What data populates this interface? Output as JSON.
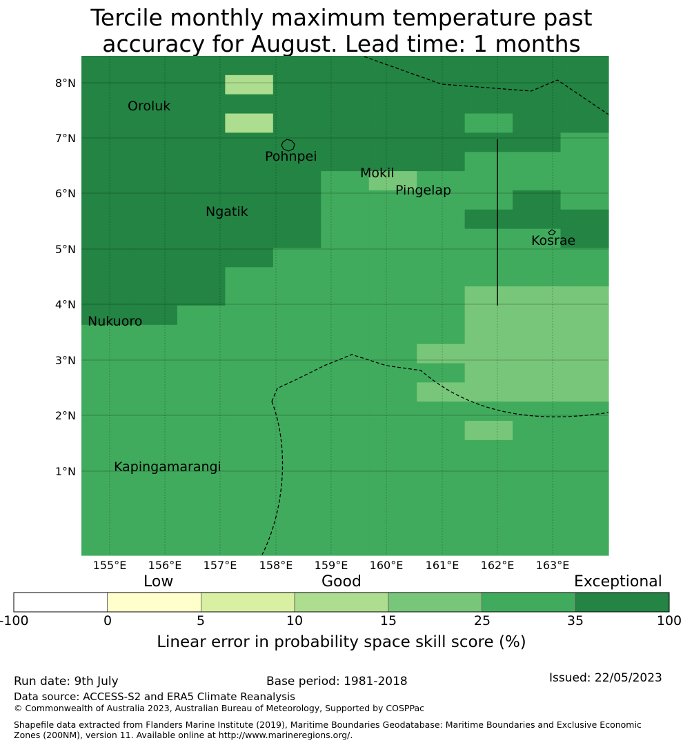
{
  "title": {
    "line1": "Tercile monthly maximum temperature past",
    "line2": "accuracy for August. Lead time: 1 months"
  },
  "map": {
    "lat_labels": [
      "8°N",
      "7°N",
      "6°N",
      "5°N",
      "4°N",
      "3°N",
      "2°N",
      "1°N"
    ],
    "lon_labels": [
      "155°E",
      "156°E",
      "157°E",
      "158°E",
      "159°E",
      "160°E",
      "161°E",
      "162°E",
      "163°E"
    ],
    "places": [
      {
        "name": "Oroluk"
      },
      {
        "name": "Pohnpei"
      },
      {
        "name": "Mokil"
      },
      {
        "name": "Pingelap"
      },
      {
        "name": "Ngatik"
      },
      {
        "name": "Kosrae"
      },
      {
        "name": "Nukuoro"
      },
      {
        "name": "Kapingamarangi"
      }
    ],
    "grid_category_rows_north_to_south": [
      "66666666666",
      "66636666666",
      "66666666666",
      "66636666566",
      "66666666665",
      "66666666555",
      "66666545555",
      "66666555565",
      "66666555666",
      "66666555556",
      "66665555555",
      "66655555555",
      "66655555444",
      "66555555444",
      "55555555444",
      "55555554444",
      "55555555444",
      "55555554444",
      "55555555555",
      "55555555455",
      "55555555555",
      "55555555555",
      "55555555555",
      "55555555555",
      "55555555555",
      "55555555555"
    ]
  },
  "legend": {
    "category_labels": [
      "Low",
      "Good",
      "Exceptional"
    ],
    "ticks": [
      "-100",
      "0",
      "5",
      "10",
      "15",
      "25",
      "35",
      "100"
    ],
    "colors": [
      "#ffffff",
      "#ffffcc",
      "#d9f0a3",
      "#addd8e",
      "#78c679",
      "#41ab5d",
      "#238443"
    ],
    "label": "Linear error in probability space skill score (%)"
  },
  "footer": {
    "run_date": "Run date: 9th July",
    "base_period": "Base period: 1981-2018",
    "issued": "Issued: 22/05/2023",
    "data_source": "Data source: ACCESS-S2 and ERA5 Climate Reanalysis",
    "copyright": "© Commonwealth of Australia 2023, Australian Bureau of Meteorology, Supported by COSPPac",
    "shapefile": "Shapefile data extracted from Flanders Marine Institute (2019), Maritime Boundaries Geodatabase: Maritime Boundaries and Exclusive Economic Zones (200NM), version 11. Available online at http://www.marineregions.org/."
  }
}
